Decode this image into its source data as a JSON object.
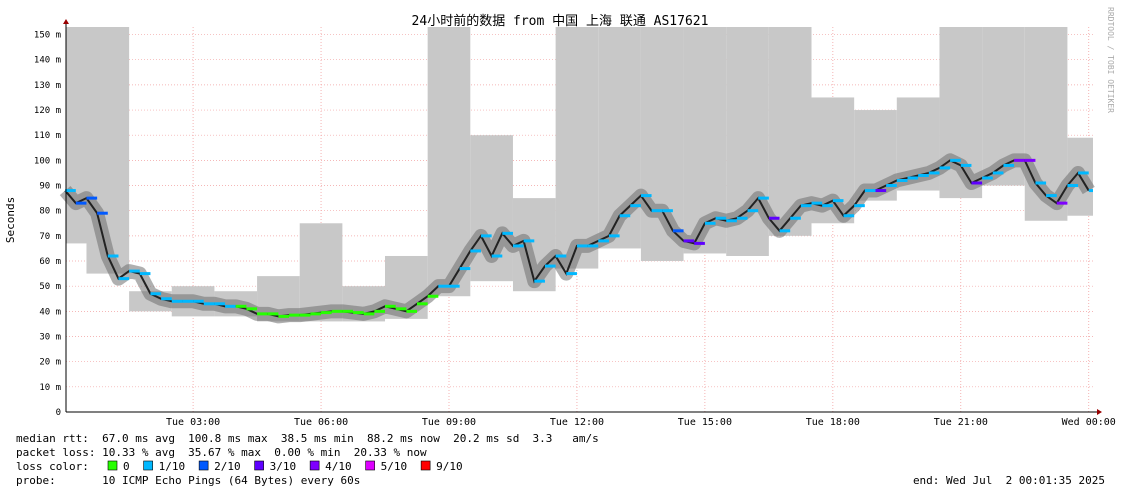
{
  "chart_data": {
    "type": "smokeping",
    "title": "24小时前的数据 from 中国 上海 联通 AS17621",
    "y_label": "Seconds",
    "watermark": "RRDTOOL / TOBI OETIKER",
    "xlim": [
      0.02,
      24.1
    ],
    "xticks": [
      {
        "value": 3,
        "label": "Tue 03:00"
      },
      {
        "value": 6,
        "label": "Tue 06:00"
      },
      {
        "value": 9,
        "label": "Tue 09:00"
      },
      {
        "value": 12,
        "label": "Tue 12:00"
      },
      {
        "value": 15,
        "label": "Tue 15:00"
      },
      {
        "value": 18,
        "label": "Tue 18:00"
      },
      {
        "value": 21,
        "label": "Tue 21:00"
      },
      {
        "value": 24,
        "label": "Wed 00:00"
      }
    ],
    "ylim": [
      0,
      153
    ],
    "yticks": [
      0,
      {
        "value": 10,
        "label": "10 m"
      },
      {
        "value": 20,
        "label": "20 m"
      },
      {
        "value": 30,
        "label": "30 m"
      },
      {
        "value": 40,
        "label": "40 m"
      },
      {
        "value": 50,
        "label": "50 m"
      },
      {
        "value": 60,
        "label": "60 m"
      },
      {
        "value": 70,
        "label": "70 m"
      },
      {
        "value": 80,
        "label": "80 m"
      },
      {
        "value": 90,
        "label": "90 m"
      },
      {
        "value": 100,
        "label": "100 m"
      },
      {
        "value": 110,
        "label": "110 m"
      },
      {
        "value": 120,
        "label": "120 m"
      },
      {
        "value": 130,
        "label": "130 m"
      },
      {
        "value": 140,
        "label": "140 m"
      },
      {
        "value": 150,
        "label": "150 m"
      }
    ],
    "grid": true,
    "smoke": {
      "color": "#c8c8c8",
      "x": [
        0,
        1,
        2,
        3,
        4,
        5,
        6,
        7,
        8,
        9,
        10,
        11,
        12,
        13,
        14,
        15,
        16,
        17,
        18,
        19,
        20,
        21,
        22,
        23,
        24
      ],
      "low": [
        67,
        55,
        40,
        38,
        38,
        36,
        36,
        36,
        37,
        46,
        52,
        48,
        57,
        65,
        60,
        63,
        62,
        70,
        75,
        84,
        88,
        85,
        90,
        76,
        78
      ],
      "high": [
        153,
        153,
        48,
        50,
        48,
        54,
        75,
        50,
        62,
        153,
        110,
        85,
        153,
        153,
        153,
        153,
        153,
        153,
        125,
        120,
        125,
        153,
        153,
        153,
        109
      ]
    },
    "median": {
      "x": [
        0,
        0.25,
        0.5,
        0.75,
        1,
        1.25,
        1.5,
        1.75,
        2,
        2.25,
        2.5,
        2.75,
        3,
        3.25,
        3.5,
        3.75,
        4,
        4.25,
        4.5,
        4.75,
        5,
        5.25,
        5.5,
        5.75,
        6,
        6.25,
        6.5,
        6.75,
        7,
        7.25,
        7.5,
        7.75,
        8,
        8.25,
        8.5,
        8.75,
        9,
        9.25,
        9.5,
        9.75,
        10,
        10.25,
        10.5,
        10.75,
        11,
        11.25,
        11.5,
        11.75,
        12,
        12.25,
        12.5,
        12.75,
        13,
        13.25,
        13.5,
        13.75,
        14,
        14.25,
        14.5,
        14.75,
        15,
        15.25,
        15.5,
        15.75,
        16,
        16.25,
        16.5,
        16.75,
        17,
        17.25,
        17.5,
        17.75,
        18,
        18.25,
        18.5,
        18.75,
        19,
        19.25,
        19.5,
        19.75,
        20,
        20.25,
        20.5,
        20.75,
        21,
        21.25,
        21.5,
        21.75,
        22,
        22.25,
        22.5,
        22.75,
        23,
        23.25,
        23.5,
        23.75,
        24
      ],
      "values": [
        88,
        83,
        85,
        79,
        62,
        53,
        56,
        55,
        47,
        45,
        44,
        44,
        44,
        43,
        43,
        42,
        42,
        41,
        39,
        39,
        38,
        38.5,
        38.5,
        39,
        39.5,
        40,
        40,
        39.5,
        39,
        40,
        42,
        41,
        40,
        43,
        46,
        50,
        50,
        57,
        64,
        70,
        62,
        71,
        66,
        68,
        52,
        58,
        62,
        55,
        66,
        66,
        68,
        70,
        78,
        82,
        86,
        80,
        80,
        72,
        68,
        67,
        75,
        77,
        76,
        77,
        80,
        85,
        77,
        72,
        77,
        82,
        83,
        82,
        84,
        78,
        82,
        88,
        88,
        90,
        92,
        93,
        94,
        95,
        97,
        100,
        98,
        91,
        93,
        95,
        98,
        100,
        100,
        91,
        86,
        83,
        90,
        95,
        88
      ],
      "loss": [
        1,
        2,
        2,
        2,
        1,
        1,
        1,
        1,
        1,
        1,
        1,
        1,
        1,
        1,
        1,
        1,
        0,
        0,
        0,
        0,
        0,
        0,
        0,
        0,
        0,
        0,
        0,
        0,
        0,
        0,
        0,
        0,
        0,
        0,
        0,
        1,
        1,
        1,
        1,
        1,
        1,
        1,
        1,
        1,
        1,
        1,
        1,
        1,
        1,
        1,
        1,
        1,
        1,
        1,
        1,
        1,
        1,
        2,
        3,
        3,
        1,
        1,
        1,
        1,
        1,
        1,
        3,
        1,
        1,
        1,
        1,
        1,
        1,
        1,
        1,
        1,
        3,
        1,
        1,
        1,
        1,
        1,
        1,
        1,
        1,
        3,
        1,
        1,
        1,
        4,
        4,
        1,
        1,
        4,
        1,
        1,
        1
      ]
    },
    "legend": {
      "title": "loss color:",
      "items": [
        {
          "label": "0",
          "color": "#26ff00"
        },
        {
          "label": "1/10",
          "color": "#00b8ff"
        },
        {
          "label": "2/10",
          "color": "#0059ff"
        },
        {
          "label": "3/10",
          "color": "#5e00ff"
        },
        {
          "label": "4/10",
          "color": "#7e00ff"
        },
        {
          "label": "5/10",
          "color": "#dd00ff"
        },
        {
          "label": "9/10",
          "color": "#ff0000"
        }
      ]
    },
    "stats": [
      "median rtt:  67.0 ms avg  100.8 ms max  38.5 ms min  88.2 ms now  20.2 ms sd  3.3   am/s",
      "packet loss: 10.33 % avg  35.67 % max  0.00 % min  20.33 % now"
    ],
    "probe": "probe:       10 ICMP Echo Pings (64 Bytes) every 60s",
    "end": "end: Wed Jul  2 00:01:35 2025"
  }
}
